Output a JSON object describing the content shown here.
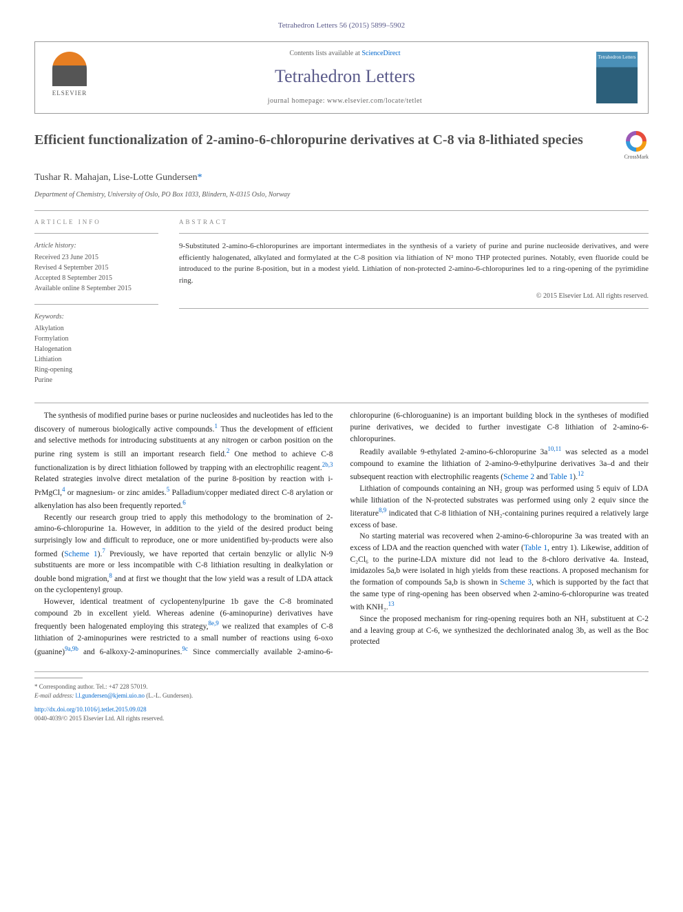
{
  "journal_ref": "Tetrahedron Letters 56 (2015) 5899–5902",
  "header": {
    "contents_prefix": "Contents lists available at ",
    "contents_link": "ScienceDirect",
    "journal_name": "Tetrahedron Letters",
    "homepage_prefix": "journal homepage: ",
    "homepage_url": "www.elsevier.com/locate/tetlet",
    "publisher": "ELSEVIER",
    "cover_title": "Tetrahedron Letters"
  },
  "crossmark_label": "CrossMark",
  "title": "Efficient functionalization of 2-amino-6-chloropurine derivatives at C-8 via 8-lithiated species",
  "authors": "Tushar R. Mahajan, Lise-Lotte Gundersen",
  "corr_marker": "*",
  "affiliation": "Department of Chemistry, University of Oslo, PO Box 1033, Blindern, N-0315 Oslo, Norway",
  "article_info": {
    "label": "ARTICLE INFO",
    "history_title": "Article history:",
    "history": [
      "Received 23 June 2015",
      "Revised 4 September 2015",
      "Accepted 8 September 2015",
      "Available online 8 September 2015"
    ],
    "keywords_title": "Keywords:",
    "keywords": [
      "Alkylation",
      "Formylation",
      "Halogenation",
      "Lithiation",
      "Ring-opening",
      "Purine"
    ]
  },
  "abstract": {
    "label": "ABSTRACT",
    "text": "9-Substituted 2-amino-6-chloropurines are important intermediates in the synthesis of a variety of purine and purine nucleoside derivatives, and were efficiently halogenated, alkylated and formylated at the C-8 position via lithiation of N² mono THP protected purines. Notably, even fluoride could be introduced to the purine 8-position, but in a modest yield. Lithiation of non-protected 2-amino-6-chloropurines led to a ring-opening of the pyrimidine ring.",
    "copyright": "© 2015 Elsevier Ltd. All rights reserved."
  },
  "body": {
    "p1_a": "The synthesis of modified purine bases or purine nucleosides and nucleotides has led to the discovery of numerous biologically active compounds.",
    "p1_b": " Thus the development of efficient and selective methods for introducing substituents at any nitrogen or carbon position on the purine ring system is still an important research field.",
    "p1_c": " One method to achieve C-8 functionalization is by direct lithiation followed by trapping with an electrophilic reagent.",
    "p1_d": " Related strategies involve direct metalation of the purine 8-position by reaction with i-PrMgCl,",
    "p1_e": " or magnesium- or zinc amides.",
    "p1_f": " Palladium/copper mediated direct C-8 arylation or alkenylation has also been frequently reported.",
    "p2_a": "Recently our research group tried to apply this methodology to the bromination of 2-amino-6-chloropurine 1a. However, in addition to the yield of the desired product being surprisingly low and difficult to reproduce, one or more unidentified by-products were also formed (",
    "p2_b": ").",
    "p2_c": " Previously, we have reported that certain benzylic or allylic N-9 substituents are more or less incompatible with C-8 lithiation resulting in dealkylation or double bond migration,",
    "p2_d": " and at first we thought that the low yield was a result of LDA attack on the cyclopentenyl group.",
    "p3_a": "However, identical treatment of cyclopentenylpurine 1b gave the C-8 brominated compound 2b in excellent yield. Whereas adenine (6-aminopurine) derivatives have frequently been halogenated employing this strategy,",
    "p3_b": " we realized that examples of C-8 lithiation of 2-aminopurines were restricted to a small number of reactions using 6-oxo (guanine)",
    "p3_c": " and 6-alkoxy-2-aminopurines.",
    "p3_d": " Since commercially available 2-amino-6-chloropurine (6-chloroguanine) is an important building block in the syntheses of modified purine derivatives, we decided to further investigate C-8 lithiation of 2-amino-6-chloropurines.",
    "p4_a": "Readily available 9-ethylated 2-amino-6-chloropurine 3a",
    "p4_b": " was selected as a model compound to examine the lithiation of 2-amino-9-ethylpurine derivatives 3a–d and their subsequent reaction with electrophilic reagents (",
    "p4_c": " and ",
    "p4_d": ").",
    "p5_a": "Lithiation of compounds containing an NH₂ group was performed using 5 equiv of LDA while lithiation of the N-protected substrates was performed using only 2 equiv since the literature",
    "p5_b": " indicated that C-8 lithiation of NH₂-containing purines required a relatively large excess of base.",
    "p6_a": "No starting material was recovered when 2-amino-6-chloropurine 3a was treated with an excess of LDA and the reaction quenched with water (",
    "p6_b": ", entry 1). Likewise, addition of C₂Cl₆ to the purine-LDA mixture did not lead to the 8-chloro derivative 4a. Instead, imidazoles 5a,b were isolated in high yields from these reactions. A proposed mechanism for the formation of compounds 5a,b is shown in ",
    "p6_c": ", which is supported by the fact that the same type of ring-opening has been observed when 2-amino-6-chloropurine was treated with KNH₂.",
    "p7_a": "Since the proposed mechanism for ring-opening requires both an NH₂ substituent at C-2 and a leaving group at C-6, we synthesized the dechlorinated analog 3b, as well as the Boc protected",
    "scheme1": "Scheme 1",
    "scheme2": "Scheme 2",
    "scheme3": "Scheme 3",
    "table1": "Table 1",
    "ref1": "1",
    "ref2": "2",
    "ref2b3": "2b,3",
    "ref4": "4",
    "ref5": "5",
    "ref6": "6",
    "ref7": "7",
    "ref8": "8",
    "ref8e9": "8e,9",
    "ref9a9b": "9a,9b",
    "ref9c": "9c",
    "ref1011": "10,11",
    "ref12": "12",
    "ref89": "8,9",
    "ref13": "13"
  },
  "footer": {
    "corr_label": "Corresponding author. Tel.: +47 228 57019.",
    "email_label": "E-mail address: ",
    "email": "l.l.gundersen@kjemi.uio.no",
    "email_suffix": " (L.-L. Gundersen).",
    "doi": "http://dx.doi.org/10.1016/j.tetlet.2015.09.028",
    "issn": "0040-4039/© 2015 Elsevier Ltd. All rights reserved."
  }
}
